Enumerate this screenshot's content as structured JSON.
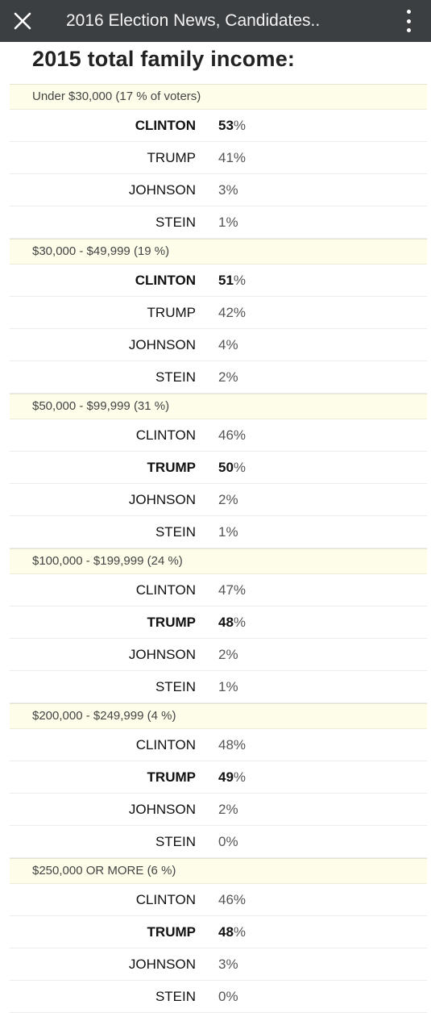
{
  "app": {
    "title": "2016 Election News, Candidates..",
    "close_label": "×"
  },
  "heading": "2015 total family income:",
  "groups": [
    {
      "label": "Under $30,000 (17 % of voters)",
      "rows": [
        {
          "name": "CLINTON",
          "value": "53",
          "winner": true
        },
        {
          "name": "TRUMP",
          "value": "41",
          "winner": false
        },
        {
          "name": "JOHNSON",
          "value": "3",
          "winner": false
        },
        {
          "name": "STEIN",
          "value": "1",
          "winner": false
        }
      ]
    },
    {
      "label": "$30,000 - $49,999 (19 %)",
      "rows": [
        {
          "name": "CLINTON",
          "value": "51",
          "winner": true
        },
        {
          "name": "TRUMP",
          "value": "42",
          "winner": false
        },
        {
          "name": "JOHNSON",
          "value": "4",
          "winner": false
        },
        {
          "name": "STEIN",
          "value": "2",
          "winner": false
        }
      ]
    },
    {
      "label": "$50,000 - $99,999 (31 %)",
      "rows": [
        {
          "name": "CLINTON",
          "value": "46",
          "winner": false
        },
        {
          "name": "TRUMP",
          "value": "50",
          "winner": true
        },
        {
          "name": "JOHNSON",
          "value": "2",
          "winner": false
        },
        {
          "name": "STEIN",
          "value": "1",
          "winner": false
        }
      ]
    },
    {
      "label": "$100,000 - $199,999 (24 %)",
      "rows": [
        {
          "name": "CLINTON",
          "value": "47",
          "winner": false
        },
        {
          "name": "TRUMP",
          "value": "48",
          "winner": true
        },
        {
          "name": "JOHNSON",
          "value": "2",
          "winner": false
        },
        {
          "name": "STEIN",
          "value": "1",
          "winner": false
        }
      ]
    },
    {
      "label": "$200,000 - $249,999 (4 %)",
      "rows": [
        {
          "name": "CLINTON",
          "value": "48",
          "winner": false
        },
        {
          "name": "TRUMP",
          "value": "49",
          "winner": true
        },
        {
          "name": "JOHNSON",
          "value": "2",
          "winner": false
        },
        {
          "name": "STEIN",
          "value": "0",
          "winner": false
        }
      ]
    },
    {
      "label": "$250,000 OR MORE (6 %)",
      "rows": [
        {
          "name": "CLINTON",
          "value": "46",
          "winner": false
        },
        {
          "name": "TRUMP",
          "value": "48",
          "winner": true
        },
        {
          "name": "JOHNSON",
          "value": "3",
          "winner": false
        },
        {
          "name": "STEIN",
          "value": "0",
          "winner": false
        }
      ]
    }
  ],
  "percent_sign": "%"
}
